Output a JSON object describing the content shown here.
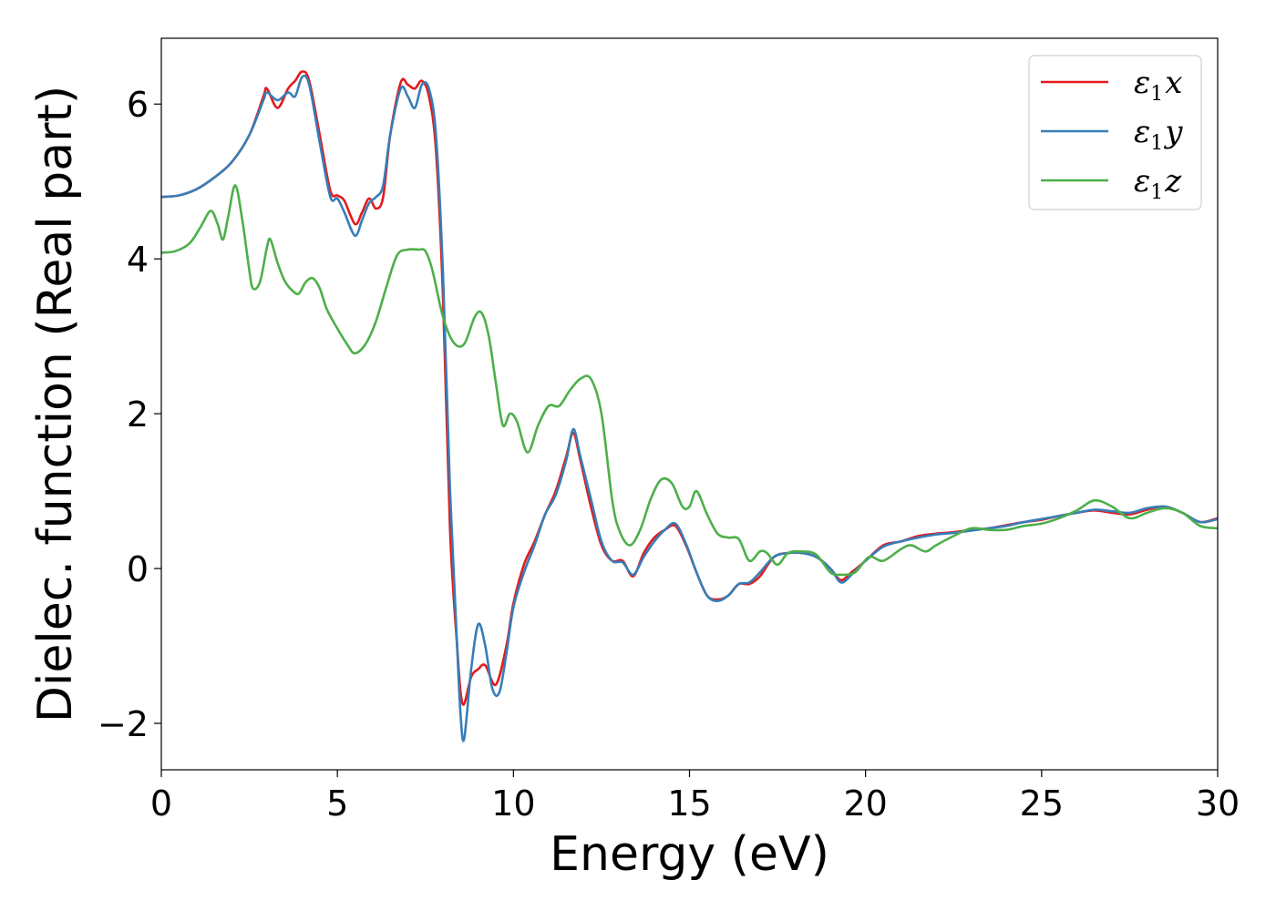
{
  "chart_data": {
    "type": "line",
    "title": "",
    "xlabel": "Energy (eV)",
    "ylabel": "Dielec. function (Real part)",
    "xlim": [
      0,
      30
    ],
    "ylim": [
      -2.6,
      6.85
    ],
    "xticks": [
      0,
      5,
      10,
      15,
      20,
      25,
      30
    ],
    "xtick_labels": [
      "0",
      "5",
      "10",
      "15",
      "20",
      "25",
      "30"
    ],
    "yticks": [
      -2,
      0,
      2,
      4,
      6
    ],
    "ytick_labels": [
      "−2",
      "0",
      "2",
      "4",
      "6"
    ],
    "grid": false,
    "legend_position": "top-right",
    "series": [
      {
        "name": "ε1x",
        "legend_base": "ε",
        "legend_sub": "1",
        "legend_var": "x",
        "color": "#e41a1c",
        "points": [
          [
            0,
            4.8
          ],
          [
            0.5,
            4.82
          ],
          [
            1.0,
            4.9
          ],
          [
            1.5,
            5.05
          ],
          [
            2.0,
            5.25
          ],
          [
            2.5,
            5.6
          ],
          [
            2.9,
            6.1
          ],
          [
            3.0,
            6.2
          ],
          [
            3.3,
            5.95
          ],
          [
            3.6,
            6.2
          ],
          [
            3.8,
            6.3
          ],
          [
            4.0,
            6.42
          ],
          [
            4.2,
            6.3
          ],
          [
            4.5,
            5.6
          ],
          [
            4.8,
            4.88
          ],
          [
            5.0,
            4.82
          ],
          [
            5.2,
            4.75
          ],
          [
            5.5,
            4.45
          ],
          [
            5.7,
            4.6
          ],
          [
            5.9,
            4.78
          ],
          [
            6.1,
            4.65
          ],
          [
            6.3,
            4.8
          ],
          [
            6.5,
            5.6
          ],
          [
            6.8,
            6.28
          ],
          [
            7.0,
            6.25
          ],
          [
            7.2,
            6.2
          ],
          [
            7.4,
            6.3
          ],
          [
            7.6,
            6.1
          ],
          [
            7.8,
            5.4
          ],
          [
            8.0,
            3.5
          ],
          [
            8.2,
            0.5
          ],
          [
            8.4,
            -1.0
          ],
          [
            8.5,
            -1.6
          ],
          [
            8.6,
            -1.75
          ],
          [
            8.8,
            -1.4
          ],
          [
            9.0,
            -1.3
          ],
          [
            9.2,
            -1.25
          ],
          [
            9.5,
            -1.5
          ],
          [
            9.8,
            -1.0
          ],
          [
            10.0,
            -0.45
          ],
          [
            10.3,
            0.05
          ],
          [
            10.6,
            0.35
          ],
          [
            10.9,
            0.7
          ],
          [
            11.2,
            1.0
          ],
          [
            11.5,
            1.45
          ],
          [
            11.7,
            1.75
          ],
          [
            11.9,
            1.4
          ],
          [
            12.2,
            0.8
          ],
          [
            12.5,
            0.3
          ],
          [
            12.8,
            0.1
          ],
          [
            13.1,
            0.1
          ],
          [
            13.4,
            -0.1
          ],
          [
            13.7,
            0.2
          ],
          [
            14.0,
            0.4
          ],
          [
            14.3,
            0.5
          ],
          [
            14.6,
            0.55
          ],
          [
            14.9,
            0.3
          ],
          [
            15.2,
            -0.05
          ],
          [
            15.5,
            -0.35
          ],
          [
            15.8,
            -0.4
          ],
          [
            16.1,
            -0.35
          ],
          [
            16.4,
            -0.2
          ],
          [
            16.7,
            -0.2
          ],
          [
            17.0,
            -0.1
          ],
          [
            17.4,
            0.15
          ],
          [
            17.8,
            0.2
          ],
          [
            18.2,
            0.2
          ],
          [
            18.6,
            0.15
          ],
          [
            19.0,
            0.0
          ],
          [
            19.3,
            -0.15
          ],
          [
            19.6,
            -0.05
          ],
          [
            20.0,
            0.1
          ],
          [
            20.5,
            0.3
          ],
          [
            21.0,
            0.35
          ],
          [
            21.5,
            0.42
          ],
          [
            22.0,
            0.45
          ],
          [
            22.5,
            0.47
          ],
          [
            23.0,
            0.5
          ],
          [
            23.5,
            0.52
          ],
          [
            24.0,
            0.56
          ],
          [
            24.5,
            0.6
          ],
          [
            25.0,
            0.63
          ],
          [
            25.5,
            0.68
          ],
          [
            26.0,
            0.72
          ],
          [
            26.5,
            0.75
          ],
          [
            27.0,
            0.72
          ],
          [
            27.5,
            0.7
          ],
          [
            28.0,
            0.76
          ],
          [
            28.5,
            0.8
          ],
          [
            29.0,
            0.72
          ],
          [
            29.5,
            0.6
          ],
          [
            30.0,
            0.65
          ]
        ]
      },
      {
        "name": "ε1y",
        "legend_base": "ε",
        "legend_sub": "1",
        "legend_var": "y",
        "color": "#377eb8",
        "points": [
          [
            0,
            4.8
          ],
          [
            0.5,
            4.82
          ],
          [
            1.0,
            4.9
          ],
          [
            1.5,
            5.05
          ],
          [
            2.0,
            5.25
          ],
          [
            2.5,
            5.6
          ],
          [
            2.9,
            6.05
          ],
          [
            3.0,
            6.15
          ],
          [
            3.3,
            6.05
          ],
          [
            3.6,
            6.15
          ],
          [
            3.8,
            6.1
          ],
          [
            4.0,
            6.35
          ],
          [
            4.2,
            6.25
          ],
          [
            4.5,
            5.5
          ],
          [
            4.8,
            4.8
          ],
          [
            5.0,
            4.78
          ],
          [
            5.2,
            4.6
          ],
          [
            5.5,
            4.3
          ],
          [
            5.7,
            4.5
          ],
          [
            5.9,
            4.72
          ],
          [
            6.1,
            4.8
          ],
          [
            6.3,
            4.95
          ],
          [
            6.5,
            5.6
          ],
          [
            6.8,
            6.2
          ],
          [
            7.0,
            6.1
          ],
          [
            7.2,
            5.95
          ],
          [
            7.4,
            6.25
          ],
          [
            7.6,
            6.2
          ],
          [
            7.8,
            5.6
          ],
          [
            8.0,
            3.8
          ],
          [
            8.2,
            1.0
          ],
          [
            8.4,
            -1.0
          ],
          [
            8.5,
            -1.9
          ],
          [
            8.6,
            -2.2
          ],
          [
            8.8,
            -1.3
          ],
          [
            9.0,
            -0.72
          ],
          [
            9.2,
            -1.0
          ],
          [
            9.4,
            -1.55
          ],
          [
            9.6,
            -1.6
          ],
          [
            9.8,
            -1.1
          ],
          [
            10.0,
            -0.5
          ],
          [
            10.3,
            -0.05
          ],
          [
            10.6,
            0.3
          ],
          [
            10.9,
            0.7
          ],
          [
            11.2,
            0.95
          ],
          [
            11.5,
            1.4
          ],
          [
            11.7,
            1.8
          ],
          [
            11.9,
            1.45
          ],
          [
            12.2,
            0.9
          ],
          [
            12.5,
            0.35
          ],
          [
            12.8,
            0.1
          ],
          [
            13.1,
            0.08
          ],
          [
            13.4,
            -0.08
          ],
          [
            13.7,
            0.15
          ],
          [
            14.0,
            0.35
          ],
          [
            14.3,
            0.5
          ],
          [
            14.6,
            0.58
          ],
          [
            14.9,
            0.32
          ],
          [
            15.2,
            -0.05
          ],
          [
            15.5,
            -0.35
          ],
          [
            15.8,
            -0.42
          ],
          [
            16.1,
            -0.35
          ],
          [
            16.4,
            -0.2
          ],
          [
            16.7,
            -0.18
          ],
          [
            17.0,
            -0.05
          ],
          [
            17.4,
            0.15
          ],
          [
            17.8,
            0.2
          ],
          [
            18.2,
            0.2
          ],
          [
            18.6,
            0.15
          ],
          [
            19.0,
            0.0
          ],
          [
            19.3,
            -0.18
          ],
          [
            19.6,
            -0.08
          ],
          [
            20.0,
            0.1
          ],
          [
            20.5,
            0.28
          ],
          [
            21.0,
            0.35
          ],
          [
            21.5,
            0.4
          ],
          [
            22.0,
            0.44
          ],
          [
            22.5,
            0.46
          ],
          [
            23.0,
            0.49
          ],
          [
            23.5,
            0.52
          ],
          [
            24.0,
            0.55
          ],
          [
            24.5,
            0.6
          ],
          [
            25.0,
            0.64
          ],
          [
            25.5,
            0.68
          ],
          [
            26.0,
            0.72
          ],
          [
            26.5,
            0.76
          ],
          [
            27.0,
            0.74
          ],
          [
            27.5,
            0.72
          ],
          [
            28.0,
            0.78
          ],
          [
            28.5,
            0.8
          ],
          [
            29.0,
            0.72
          ],
          [
            29.5,
            0.6
          ],
          [
            30.0,
            0.64
          ]
        ]
      },
      {
        "name": "ε1z",
        "legend_base": "ε",
        "legend_sub": "1",
        "legend_var": "z",
        "color": "#4daf4a",
        "points": [
          [
            0,
            4.08
          ],
          [
            0.4,
            4.1
          ],
          [
            0.8,
            4.2
          ],
          [
            1.1,
            4.4
          ],
          [
            1.4,
            4.62
          ],
          [
            1.6,
            4.45
          ],
          [
            1.75,
            4.25
          ],
          [
            1.9,
            4.55
          ],
          [
            2.1,
            4.95
          ],
          [
            2.3,
            4.5
          ],
          [
            2.5,
            3.85
          ],
          [
            2.6,
            3.62
          ],
          [
            2.8,
            3.7
          ],
          [
            3.0,
            4.15
          ],
          [
            3.1,
            4.25
          ],
          [
            3.3,
            3.95
          ],
          [
            3.5,
            3.72
          ],
          [
            3.7,
            3.6
          ],
          [
            3.9,
            3.55
          ],
          [
            4.1,
            3.7
          ],
          [
            4.3,
            3.75
          ],
          [
            4.5,
            3.62
          ],
          [
            4.7,
            3.35
          ],
          [
            5.0,
            3.1
          ],
          [
            5.3,
            2.88
          ],
          [
            5.5,
            2.78
          ],
          [
            5.8,
            2.9
          ],
          [
            6.1,
            3.2
          ],
          [
            6.4,
            3.65
          ],
          [
            6.7,
            4.05
          ],
          [
            7.0,
            4.12
          ],
          [
            7.3,
            4.12
          ],
          [
            7.5,
            4.1
          ],
          [
            7.7,
            3.85
          ],
          [
            8.0,
            3.25
          ],
          [
            8.3,
            2.92
          ],
          [
            8.6,
            2.9
          ],
          [
            8.9,
            3.25
          ],
          [
            9.1,
            3.3
          ],
          [
            9.3,
            3.0
          ],
          [
            9.5,
            2.4
          ],
          [
            9.7,
            1.85
          ],
          [
            9.9,
            2.0
          ],
          [
            10.1,
            1.9
          ],
          [
            10.4,
            1.5
          ],
          [
            10.7,
            1.85
          ],
          [
            11.0,
            2.1
          ],
          [
            11.3,
            2.1
          ],
          [
            11.6,
            2.3
          ],
          [
            11.9,
            2.45
          ],
          [
            12.2,
            2.45
          ],
          [
            12.5,
            2.0
          ],
          [
            12.8,
            0.9
          ],
          [
            13.0,
            0.5
          ],
          [
            13.3,
            0.3
          ],
          [
            13.6,
            0.5
          ],
          [
            13.9,
            0.9
          ],
          [
            14.2,
            1.15
          ],
          [
            14.5,
            1.1
          ],
          [
            14.8,
            0.8
          ],
          [
            15.0,
            0.8
          ],
          [
            15.2,
            1.0
          ],
          [
            15.5,
            0.7
          ],
          [
            15.8,
            0.45
          ],
          [
            16.1,
            0.4
          ],
          [
            16.4,
            0.38
          ],
          [
            16.7,
            0.1
          ],
          [
            17.0,
            0.22
          ],
          [
            17.2,
            0.2
          ],
          [
            17.5,
            0.05
          ],
          [
            17.8,
            0.2
          ],
          [
            18.2,
            0.22
          ],
          [
            18.6,
            0.18
          ],
          [
            19.0,
            -0.05
          ],
          [
            19.3,
            -0.08
          ],
          [
            19.7,
            -0.05
          ],
          [
            20.1,
            0.15
          ],
          [
            20.5,
            0.1
          ],
          [
            21.0,
            0.25
          ],
          [
            21.3,
            0.3
          ],
          [
            21.7,
            0.22
          ],
          [
            22.0,
            0.3
          ],
          [
            22.5,
            0.42
          ],
          [
            23.0,
            0.52
          ],
          [
            23.5,
            0.5
          ],
          [
            24.0,
            0.5
          ],
          [
            24.5,
            0.55
          ],
          [
            25.0,
            0.58
          ],
          [
            25.5,
            0.65
          ],
          [
            26.0,
            0.75
          ],
          [
            26.5,
            0.88
          ],
          [
            27.0,
            0.8
          ],
          [
            27.5,
            0.65
          ],
          [
            28.0,
            0.72
          ],
          [
            28.5,
            0.78
          ],
          [
            29.0,
            0.72
          ],
          [
            29.5,
            0.55
          ],
          [
            30.0,
            0.52
          ]
        ]
      }
    ]
  }
}
